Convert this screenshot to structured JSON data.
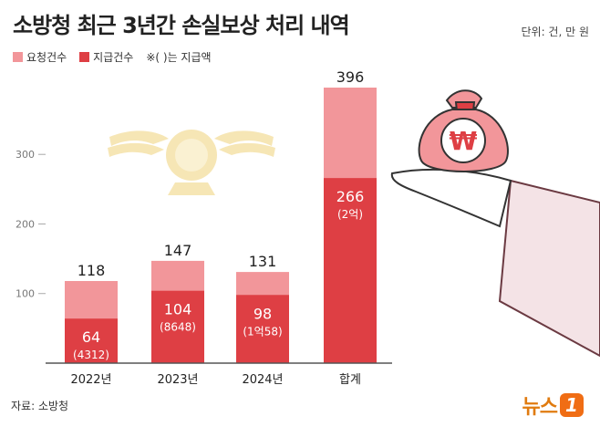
{
  "title": "소방청 최근 3년간 손실보상 처리 내역",
  "unit_note": "단위: 건, 만 원",
  "legend": {
    "requested": "요청건수",
    "paid": "지급건수",
    "note": "※( )는 지급액"
  },
  "colors": {
    "requested": "#f2969a",
    "paid": "#de3f44",
    "emblem": "#f5e7b0",
    "sleeve": "#f4e3e6"
  },
  "chart_data": {
    "type": "bar",
    "categories": [
      "2022년",
      "2023년",
      "2024년",
      "합계"
    ],
    "series": [
      {
        "name": "요청건수",
        "values": [
          118,
          147,
          131,
          396
        ]
      },
      {
        "name": "지급건수",
        "values": [
          64,
          104,
          98,
          266
        ]
      }
    ],
    "paid_amounts": [
      "(4312)",
      "(8648)",
      "(1억58)",
      "(2억)"
    ],
    "yticks": [
      100,
      200,
      300
    ],
    "ylim": [
      0,
      396
    ],
    "grid": false
  },
  "source": "자료: 소방청",
  "brand": {
    "name": "뉴스",
    "badge": "1"
  },
  "illustration": {
    "currency_symbol": "₩"
  }
}
